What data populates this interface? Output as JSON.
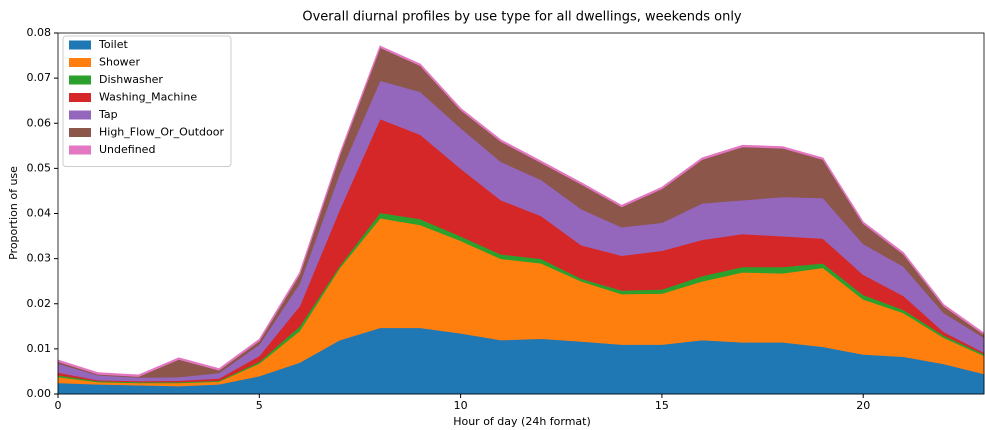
{
  "chart_data": {
    "type": "stacked_area",
    "title": "Overall diurnal profiles by use type for all dwellings, weekends only",
    "x_label": "Hour of day (24h format)",
    "y_label": "Proportion of use",
    "x": [
      0,
      1,
      2,
      3,
      4,
      5,
      6,
      7,
      8,
      9,
      10,
      11,
      12,
      13,
      14,
      15,
      16,
      17,
      18,
      19,
      20,
      21,
      22,
      23
    ],
    "xlim": [
      0,
      23
    ],
    "xticks": [
      0,
      5,
      10,
      15,
      20
    ],
    "ylim": [
      0,
      0.08
    ],
    "yticks": [
      {
        "value": 0,
        "label": "0.00"
      },
      {
        "value": 0.01,
        "label": "0.01"
      },
      {
        "value": 0.02,
        "label": "0.02"
      },
      {
        "value": 0.03,
        "label": "0.03"
      },
      {
        "value": 0.04,
        "label": "0.04"
      },
      {
        "value": 0.05,
        "label": "0.05"
      },
      {
        "value": 0.06,
        "label": "0.06"
      },
      {
        "value": 0.07,
        "label": "0.07"
      },
      {
        "value": 0.08,
        "label": "0.08"
      }
    ],
    "legend": "upper left",
    "series": [
      {
        "name": "Toilet",
        "color": "#1f77b4",
        "values": [
          0.0025,
          0.0022,
          0.002,
          0.0018,
          0.0022,
          0.004,
          0.007,
          0.012,
          0.0147,
          0.0147,
          0.0135,
          0.012,
          0.0123,
          0.0117,
          0.011,
          0.011,
          0.012,
          0.0115,
          0.0115,
          0.0105,
          0.0088,
          0.0083,
          0.0067,
          0.0045
        ]
      },
      {
        "name": "Shower",
        "color": "#ff7f0e",
        "values": [
          0.0013,
          0.0005,
          0.0005,
          0.0007,
          0.0006,
          0.0028,
          0.007,
          0.016,
          0.0243,
          0.0228,
          0.0205,
          0.018,
          0.0167,
          0.0133,
          0.0112,
          0.0113,
          0.013,
          0.0155,
          0.0153,
          0.0175,
          0.0122,
          0.0097,
          0.0058,
          0.004
        ]
      },
      {
        "name": "Dishwasher",
        "color": "#2ca02c",
        "values": [
          0.0004,
          0.0002,
          0.0002,
          0.0002,
          0.0002,
          0.0004,
          0.001,
          0.0005,
          0.0012,
          0.0013,
          0.001,
          0.001,
          0.001,
          0.0006,
          0.0008,
          0.0009,
          0.0012,
          0.0012,
          0.0014,
          0.001,
          0.001,
          0.0007,
          0.0005,
          0.0004
        ]
      },
      {
        "name": "Washing_Machine",
        "color": "#d62728",
        "values": [
          0.0006,
          0.0002,
          0.0002,
          0.0003,
          0.0005,
          0.0013,
          0.0045,
          0.0125,
          0.0208,
          0.0187,
          0.015,
          0.012,
          0.0095,
          0.0074,
          0.0077,
          0.0086,
          0.008,
          0.0073,
          0.0068,
          0.0055,
          0.0045,
          0.0031,
          0.0008,
          0.0003
        ]
      },
      {
        "name": "Tap",
        "color": "#9467bd",
        "values": [
          0.002,
          0.0011,
          0.0008,
          0.0008,
          0.0012,
          0.0025,
          0.005,
          0.008,
          0.0085,
          0.0095,
          0.009,
          0.0085,
          0.008,
          0.008,
          0.0063,
          0.0062,
          0.0081,
          0.0075,
          0.0087,
          0.009,
          0.0068,
          0.0065,
          0.0042,
          0.0033
        ]
      },
      {
        "name": "High_Flow_Or_Outdoor",
        "color": "#8c564b",
        "values": [
          0.0004,
          0.0002,
          0.0002,
          0.0039,
          0.0006,
          0.0008,
          0.002,
          0.004,
          0.0073,
          0.0058,
          0.004,
          0.0045,
          0.0038,
          0.0055,
          0.0045,
          0.0075,
          0.0097,
          0.0118,
          0.0108,
          0.0085,
          0.0045,
          0.0027,
          0.0015,
          0.0007
        ]
      },
      {
        "name": "Undefined",
        "color": "#e377c2",
        "values": [
          0.0003,
          0.0003,
          0.0003,
          0.0003,
          0.0003,
          0.0003,
          0.0003,
          0.0003,
          0.0003,
          0.0003,
          0.0003,
          0.0003,
          0.0003,
          0.0003,
          0.0003,
          0.0003,
          0.0003,
          0.0003,
          0.0003,
          0.0003,
          0.0003,
          0.0003,
          0.0003,
          0.0003
        ]
      }
    ]
  }
}
